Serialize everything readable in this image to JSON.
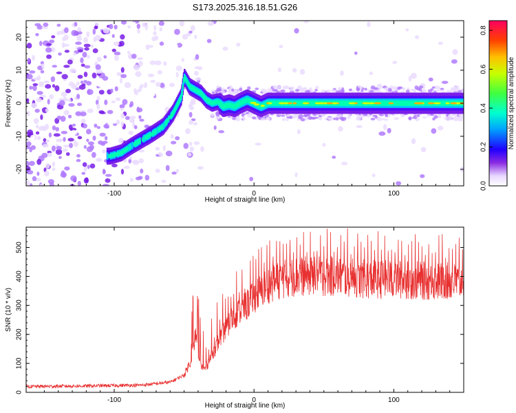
{
  "title": "S173.2025.316.18.51.G26",
  "chart_data": [
    {
      "type": "heatmap",
      "title": "S173.2025.316.18.51.G26",
      "xlabel": "Height of straight line (km)",
      "ylabel": "Frequency (Hz)",
      "xlim": [
        -163,
        150
      ],
      "ylim": [
        -25,
        25
      ],
      "xticks": [
        -100,
        0,
        100
      ],
      "yticks": [
        -20,
        -10,
        0,
        10,
        20
      ],
      "colorbar": {
        "label": "Normalized spectral amplitude",
        "range": [
          0,
          0.85
        ],
        "ticks": [
          0.0,
          0.2,
          0.4,
          0.6,
          0.8
        ]
      },
      "ridge": {
        "description": "dominant frequency trace",
        "x": [
          -103,
          -95,
          -88,
          -80,
          -72,
          -65,
          -58,
          -52,
          -50,
          -46,
          -42,
          -38,
          -34,
          -30,
          -26,
          -22,
          -18,
          -14,
          -10,
          -5,
          0,
          5,
          10,
          20,
          40,
          60,
          80,
          100,
          120,
          150
        ],
        "y": [
          -16,
          -15,
          -13,
          -11,
          -9,
          -7,
          -3,
          2,
          8,
          5,
          4,
          3,
          1,
          0,
          0.5,
          -1,
          -0.5,
          -1,
          0,
          1,
          0,
          -1,
          0,
          0,
          0,
          0,
          0,
          0,
          0,
          0
        ]
      }
    },
    {
      "type": "line",
      "xlabel": "Height of straight line (km)",
      "ylabel": "SNR (10 * v/v)",
      "xlim": [
        -163,
        150
      ],
      "ylim": [
        0,
        570
      ],
      "xticks": [
        -100,
        0,
        100
      ],
      "yticks": [
        0,
        100,
        200,
        300,
        400,
        500
      ],
      "series": [
        {
          "name": "SNR",
          "color": "#e83030",
          "envelope_x": [
            -163,
            -120,
            -80,
            -60,
            -50,
            -45,
            -42,
            -40,
            -38,
            -35,
            -30,
            -25,
            -20,
            -15,
            -10,
            -5,
            0,
            10,
            20,
            30,
            40,
            60,
            80,
            100,
            120,
            150
          ],
          "envelope_y": [
            20,
            22,
            25,
            35,
            60,
            110,
            200,
            120,
            90,
            80,
            130,
            180,
            220,
            260,
            280,
            300,
            330,
            370,
            390,
            400,
            400,
            400,
            390,
            390,
            385,
            380
          ]
        }
      ]
    }
  ]
}
